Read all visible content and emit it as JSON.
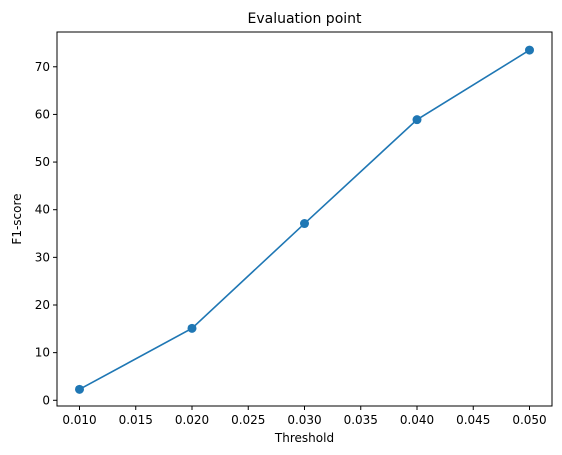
{
  "chart_data": {
    "type": "line",
    "title": "Evaluation point",
    "xlabel": "Threshold",
    "ylabel": "F1-score",
    "x": [
      0.01,
      0.02,
      0.03,
      0.04,
      0.05
    ],
    "series": [
      {
        "values": [
          2.3,
          15.1,
          37.1,
          58.9,
          73.5
        ]
      }
    ],
    "xlim": [
      0.008,
      0.052
    ],
    "ylim": [
      -1.2,
      77.3
    ],
    "xticks": [
      "0.010",
      "0.015",
      "0.020",
      "0.025",
      "0.030",
      "0.035",
      "0.040",
      "0.045",
      "0.050"
    ],
    "yticks": [
      "0",
      "10",
      "20",
      "30",
      "40",
      "50",
      "60",
      "70"
    ],
    "grid": false,
    "marker": "circle",
    "colors": {
      "line": "#1f77b4",
      "axes": "#000000",
      "background": "#ffffff"
    }
  }
}
